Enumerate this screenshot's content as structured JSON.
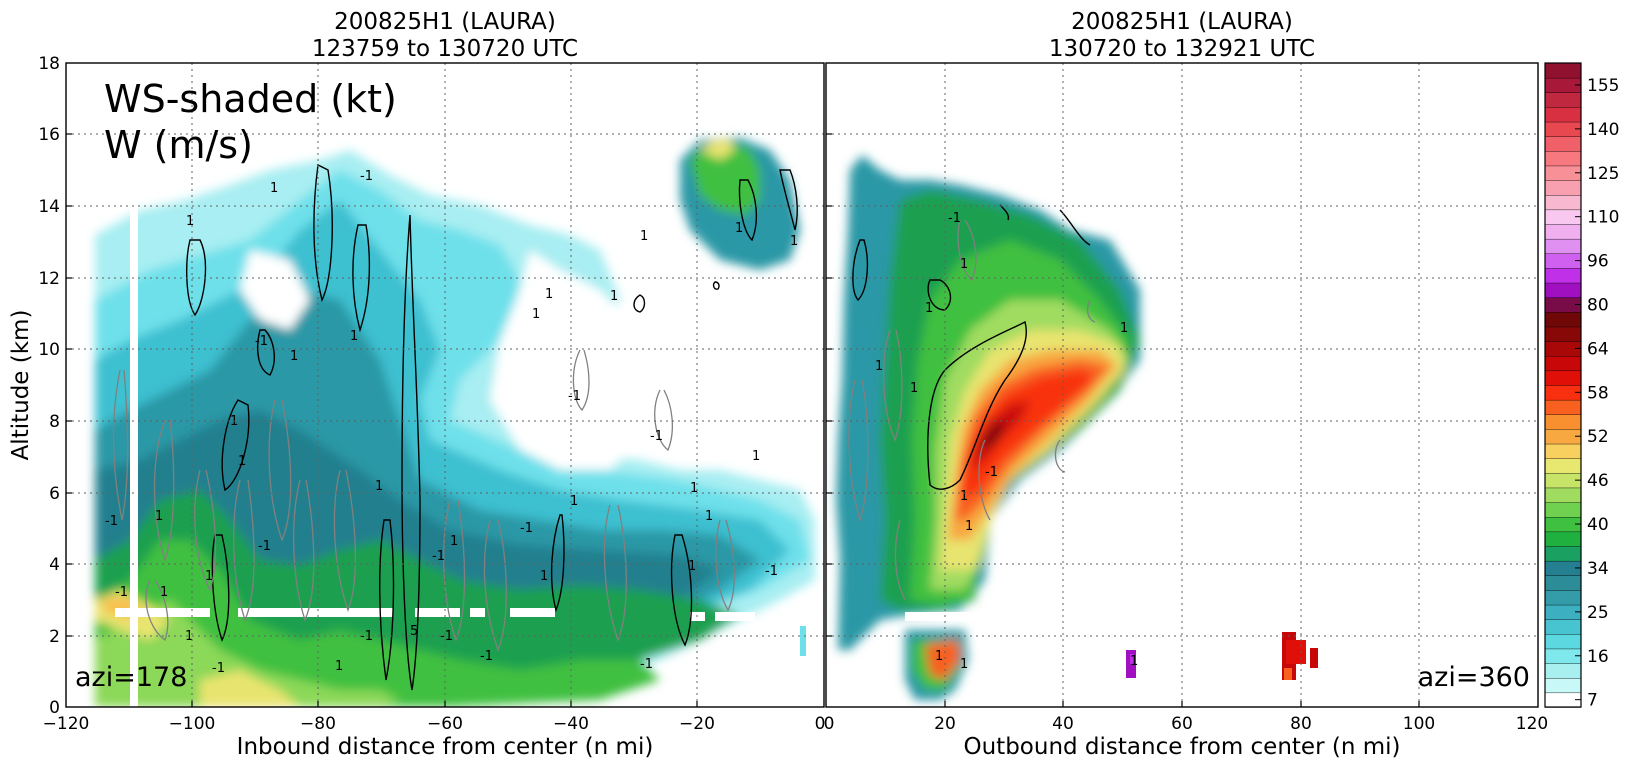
{
  "chart_data": [
    {
      "type": "heatmap",
      "title": "200825H1 (LAURA)",
      "subtitle": "123759 to 130720 UTC",
      "xlabel": "Inbound distance from center (n mi)",
      "ylabel": "Altitude (km)",
      "xlim": [
        -120,
        0
      ],
      "ylim": [
        0,
        18
      ],
      "x_ticks": [
        "−120",
        "−100",
        "−80",
        "−60",
        "−40",
        "−20",
        "0"
      ],
      "y_ticks": [
        "0",
        "2",
        "4",
        "6",
        "8",
        "10",
        "12",
        "14",
        "16",
        "18"
      ],
      "annotations": [
        "WS-shaded (kt)",
        "W (m/s)",
        "azi=178"
      ],
      "grid": true
    },
    {
      "type": "heatmap",
      "title": "200825H1 (LAURA)",
      "subtitle": "130720 to 132921 UTC",
      "xlabel": "Outbound distance from center (n mi)",
      "xlim": [
        0,
        120
      ],
      "ylim": [
        0,
        18
      ],
      "x_ticks": [
        "0",
        "20",
        "40",
        "60",
        "80",
        "100",
        "120"
      ],
      "annotations": [
        "azi=360"
      ],
      "grid": true
    }
  ],
  "colorbar": {
    "ticks": [
      "7",
      "16",
      "25",
      "34",
      "40",
      "46",
      "52",
      "58",
      "64",
      "80",
      "96",
      "110",
      "125",
      "140",
      "155"
    ],
    "colors": [
      "#ffffff",
      "#c8f8f8",
      "#a8f0f0",
      "#7ee8ec",
      "#5cd8e0",
      "#48c4d0",
      "#3cb0c0",
      "#349ca8",
      "#2c8c98",
      "#248090",
      "#1aa060",
      "#20b040",
      "#40c040",
      "#70d050",
      "#a0dc60",
      "#c8e468",
      "#e8e870",
      "#f8d060",
      "#f8a840",
      "#f89030",
      "#f86020",
      "#f83010",
      "#e01008",
      "#c80808",
      "#a80808",
      "#880808",
      "#700808",
      "#780c48",
      "#a010c0",
      "#c030e8",
      "#d060f0",
      "#e090f0",
      "#f0b0f0",
      "#f8c8f0",
      "#f8b8d0",
      "#f8a0b0",
      "#f89098",
      "#f87880",
      "#f06068",
      "#e84850",
      "#d83040",
      "#c02840",
      "#a81838",
      "#901030"
    ]
  }
}
